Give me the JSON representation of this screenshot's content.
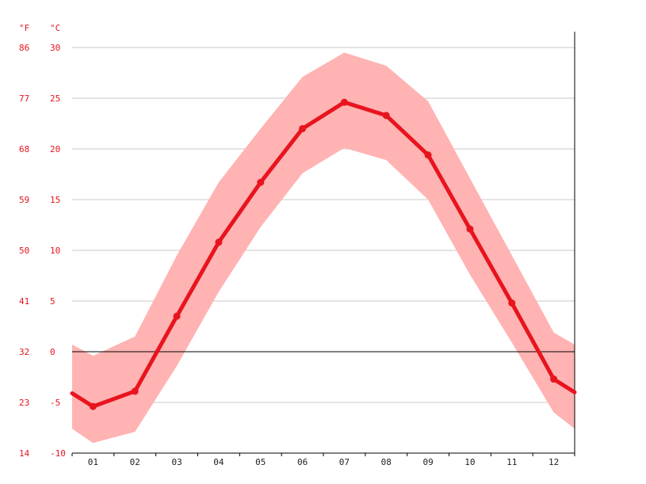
{
  "chart_data": {
    "type": "line",
    "y_unit_left": "°F",
    "y_unit_right": "°C",
    "categories": [
      "01",
      "02",
      "03",
      "04",
      "05",
      "06",
      "07",
      "08",
      "09",
      "10",
      "11",
      "12"
    ],
    "ylim_c": [
      -10,
      30
    ],
    "yticks_c": [
      "30",
      "25",
      "20",
      "15",
      "10",
      "5",
      "0",
      "-5",
      "-10"
    ],
    "yticks_f": [
      "86",
      "77",
      "68",
      "59",
      "50",
      "41",
      "32",
      "23",
      "14"
    ],
    "series": [
      {
        "role": "mean",
        "values": [
          -5.4,
          -3.9,
          3.5,
          10.8,
          16.7,
          22.0,
          24.6,
          23.3,
          19.4,
          12.1,
          4.8,
          -2.7
        ]
      },
      {
        "role": "max",
        "values": [
          -0.4,
          1.5,
          9.5,
          16.7,
          22.0,
          27.1,
          29.5,
          28.2,
          24.7,
          17.1,
          9.5,
          1.9
        ]
      },
      {
        "role": "min",
        "values": [
          -9.0,
          -7.9,
          -1.4,
          5.9,
          12.3,
          17.6,
          20.1,
          18.9,
          15.0,
          7.6,
          0.9,
          -6.0
        ]
      }
    ],
    "edge_values": {
      "left": {
        "mean": -4.1,
        "max": 0.7,
        "min": -7.6
      },
      "right": {
        "mean": -4.0,
        "max": 0.7,
        "min": -7.6
      }
    },
    "grid": true,
    "colors": {
      "line": "#e8141e",
      "band": "#ffb3b3",
      "text": "#e8141e",
      "grid": "#c8c8c8",
      "zero": "#000000"
    }
  }
}
